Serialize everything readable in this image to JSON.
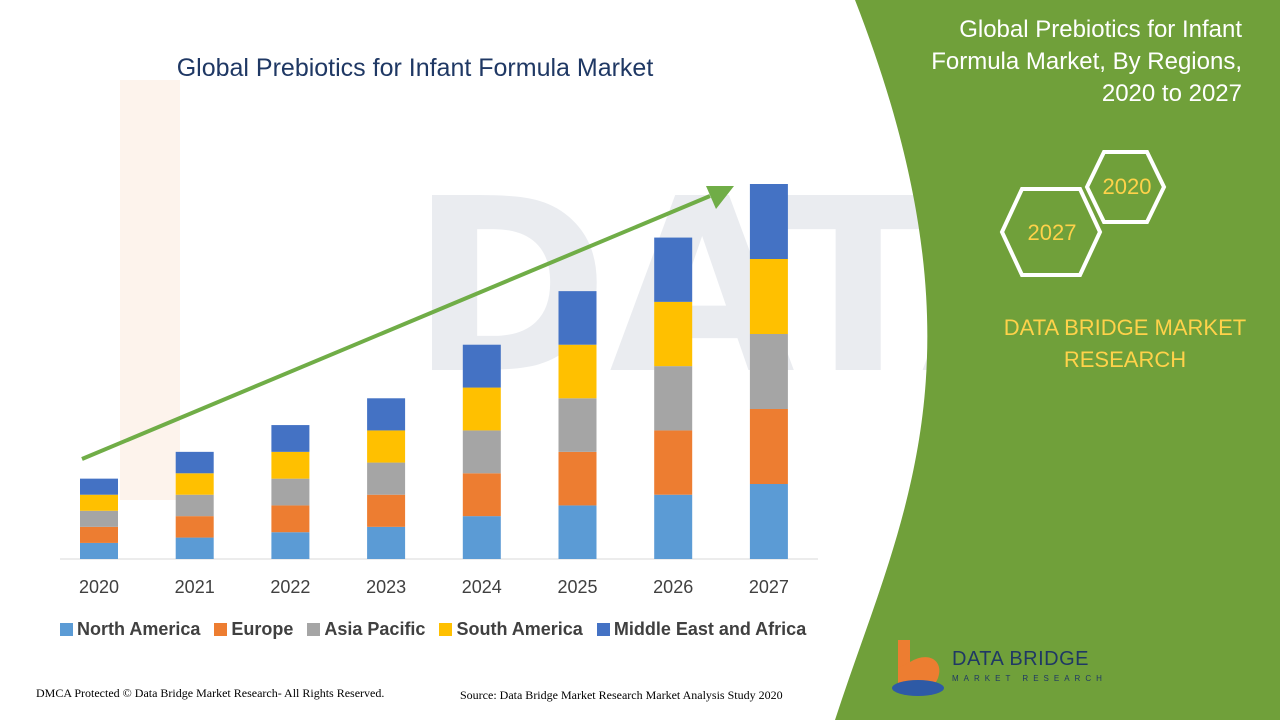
{
  "chart_data": {
    "type": "bar",
    "stacked": true,
    "title": "Global Prebiotics for Infant Formula Market",
    "categories": [
      "2020",
      "2021",
      "2022",
      "2023",
      "2024",
      "2025",
      "2026",
      "2027"
    ],
    "series": [
      {
        "name": "North America",
        "color": "#5b9bd5",
        "values": [
          15,
          20,
          25,
          30,
          40,
          50,
          60,
          70
        ]
      },
      {
        "name": "Europe",
        "color": "#ed7d31",
        "values": [
          15,
          20,
          25,
          30,
          40,
          50,
          60,
          70
        ]
      },
      {
        "name": "Asia Pacific",
        "color": "#a5a5a5",
        "values": [
          15,
          20,
          25,
          30,
          40,
          50,
          60,
          70
        ]
      },
      {
        "name": "South America",
        "color": "#ffc000",
        "values": [
          15,
          20,
          25,
          30,
          40,
          50,
          60,
          70
        ]
      },
      {
        "name": "Middle East and Africa",
        "color": "#4472c4",
        "values": [
          15,
          20,
          25,
          30,
          40,
          50,
          60,
          70
        ]
      }
    ],
    "ylim": [
      0,
      350
    ],
    "grid": false,
    "legend_position": "bottom",
    "trend_arrow": {
      "from": "2020",
      "to": "2027",
      "color": "#70ad47"
    }
  },
  "side_panel": {
    "title": "Global Prebiotics for Infant Formula Market, By Regions, 2020 to 2027",
    "hex_start": "2020",
    "hex_end": "2027",
    "brand": "DATA BRIDGE MARKET RESEARCH",
    "background_color": "#70a03a"
  },
  "watermark": {
    "text": "DATA BRIDGE"
  },
  "logo": {
    "name": "DATA BRIDGE",
    "tagline": "MARKET RESEARCH"
  },
  "footer": {
    "copyright": "DMCA Protected © Data Bridge Market Research- All Rights Reserved.",
    "source": "Source: Data Bridge Market Research Market Analysis Study 2020"
  }
}
